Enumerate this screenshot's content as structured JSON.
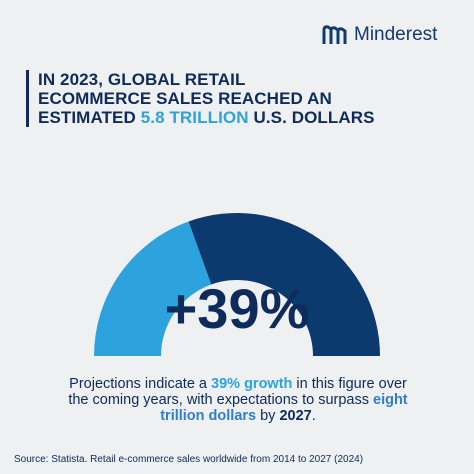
{
  "logo": "Minderest",
  "title": {
    "line1": "IN 2023, GLOBAL RETAIL",
    "line2": "ECOMMERCE SALES REACHED AN",
    "line3_start": "ESTIMATED ",
    "line3_highlight": "5.8 TRILLION",
    "line3_end": " U.S. DOLLARS"
  },
  "gauge": {
    "value": 39,
    "value_label": "+39%",
    "colors": [
      "#2ca3dd",
      "#0d3a6e"
    ]
  },
  "paragraph": {
    "part1": "Projections indicate a ",
    "growth": "39% growth",
    "part2": " in this figure over the coming years, with expectations to surpass ",
    "target": "eight trillion dollars",
    "part3": " by ",
    "year": "2027",
    "part4": "."
  },
  "source": "Source: Statista. Retail e-commerce sales worldwide from 2014 to 2027 (2024)"
}
